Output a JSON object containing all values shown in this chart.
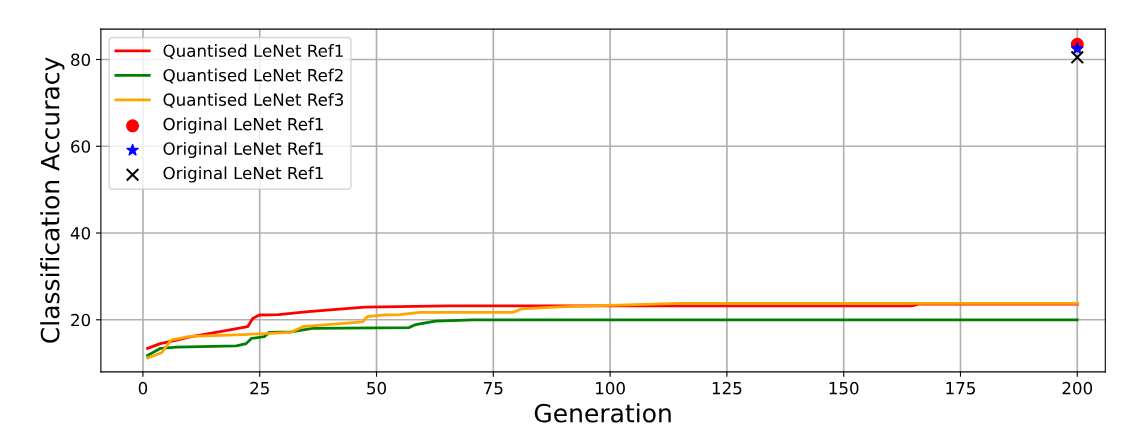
{
  "chart_data": {
    "type": "line",
    "xlabel": "Generation",
    "ylabel": "Classification Accuracy",
    "xlim": [
      -9,
      206
    ],
    "ylim": [
      8,
      87
    ],
    "xticks": [
      0,
      25,
      50,
      75,
      100,
      125,
      150,
      175,
      200
    ],
    "yticks": [
      20,
      40,
      60,
      80
    ],
    "grid": true,
    "legend": "top left",
    "series": [
      {
        "name": "Quantised LeNet Ref1",
        "color": "#ff0000",
        "x": [
          1,
          3.7,
          7.2,
          10.7,
          15.6,
          19.2,
          22.4,
          23.5,
          24.9,
          29,
          35.4,
          47.5,
          65.3,
          100,
          164.6,
          166,
          200
        ],
        "values": [
          13.4,
          14.5,
          15.3,
          16.2,
          17.1,
          17.8,
          18.4,
          20.3,
          21.1,
          21.2,
          21.9,
          22.9,
          23.2,
          23.2,
          23.2,
          23.6,
          23.6
        ]
      },
      {
        "name": "Quantised LeNet Ref2",
        "color": "#008000",
        "x": [
          1,
          3.7,
          7.2,
          20,
          22.1,
          23.2,
          26,
          27,
          31.7,
          36.3,
          57,
          58.4,
          62.6,
          70.7,
          200
        ],
        "values": [
          11.8,
          13.4,
          13.7,
          14.0,
          14.5,
          15.7,
          16.1,
          17.1,
          17.2,
          18.0,
          18.2,
          18.9,
          19.7,
          20.0,
          20.0
        ]
      },
      {
        "name": "Quantised LeNet Ref3",
        "color": "#ffa500",
        "x": [
          1,
          4,
          6,
          10,
          21.4,
          31.7,
          34.2,
          47,
          48,
          51.2,
          55,
          59.3,
          79.2,
          81,
          89.2,
          96.3,
          114.8,
          200
        ],
        "values": [
          11.2,
          12.4,
          15.3,
          16.2,
          16.6,
          17.1,
          18.4,
          19.5,
          20.7,
          21.1,
          21.2,
          21.7,
          21.7,
          22.5,
          23.0,
          23.2,
          23.8,
          23.8
        ]
      },
      {
        "name": "Original LeNet Ref1",
        "type": "scatter",
        "marker": "circle",
        "color": "#ff0000",
        "x": [
          200
        ],
        "values": [
          83.5
        ]
      },
      {
        "name": "Original LeNet Ref1",
        "type": "scatter",
        "marker": "star",
        "color": "#0000ff",
        "x": [
          200
        ],
        "values": [
          82.5
        ]
      },
      {
        "name": "Original LeNet Ref1",
        "type": "scatter",
        "marker": "cross",
        "color": "#000000",
        "x": [
          200
        ],
        "values": [
          80.5
        ]
      }
    ]
  }
}
